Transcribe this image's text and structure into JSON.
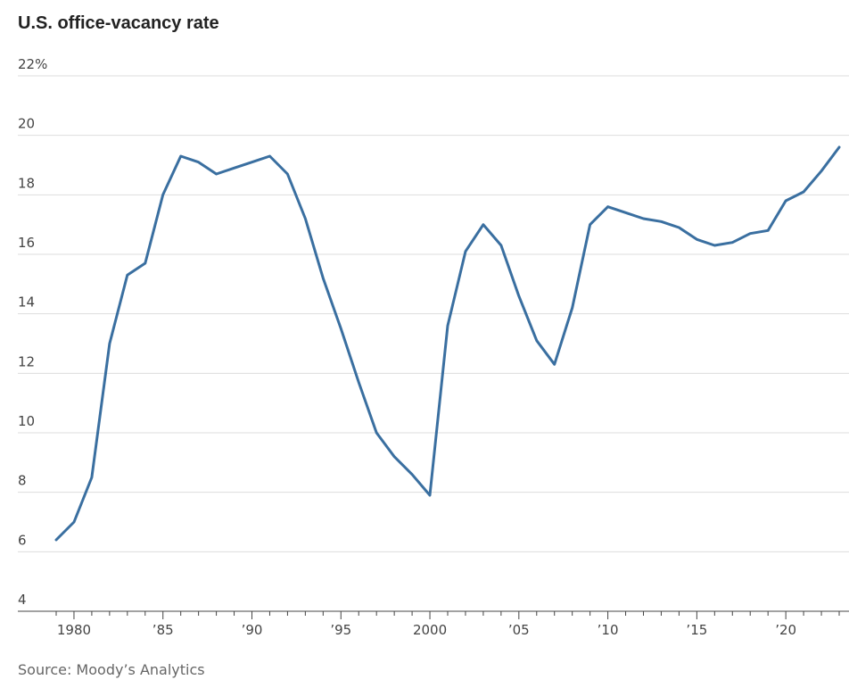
{
  "chart_data": {
    "type": "line",
    "title": "U.S. office-vacancy rate",
    "source": "Source: Moody’s Analytics",
    "y_unit_suffix": "%",
    "ylim": [
      4,
      22
    ],
    "xlim": [
      1978.1,
      2023.3
    ],
    "y_ticks": [
      {
        "value": 22,
        "label": "22%"
      },
      {
        "value": 20,
        "label": "20"
      },
      {
        "value": 18,
        "label": "18"
      },
      {
        "value": 16,
        "label": "16"
      },
      {
        "value": 14,
        "label": "14"
      },
      {
        "value": 12,
        "label": "12"
      },
      {
        "value": 10,
        "label": "10"
      },
      {
        "value": 8,
        "label": "8"
      },
      {
        "value": 6,
        "label": "6"
      },
      {
        "value": 4,
        "label": "4"
      }
    ],
    "x_ticks": [
      {
        "value": 1980,
        "label": "1980"
      },
      {
        "value": 1985,
        "label": "’85"
      },
      {
        "value": 1990,
        "label": "’90"
      },
      {
        "value": 1995,
        "label": "’95"
      },
      {
        "value": 2000,
        "label": "2000"
      },
      {
        "value": 2005,
        "label": "’05"
      },
      {
        "value": 2010,
        "label": "’10"
      },
      {
        "value": 2015,
        "label": "’15"
      },
      {
        "value": 2020,
        "label": "’20"
      }
    ],
    "minor_x_ticks": [
      1979,
      1980,
      1981,
      1982,
      1983,
      1984,
      1985,
      1986,
      1987,
      1988,
      1989,
      1990,
      1991,
      1992,
      1993,
      1994,
      1995,
      1996,
      1997,
      1998,
      1999,
      2000,
      2001,
      2002,
      2003,
      2004,
      2005,
      2006,
      2007,
      2008,
      2009,
      2010,
      2011,
      2012,
      2013,
      2014,
      2015,
      2016,
      2017,
      2018,
      2019,
      2020,
      2021,
      2022,
      2023
    ],
    "grid": true,
    "series": [
      {
        "color": "#3a6fa0",
        "x": [
          1979,
          1980,
          1981,
          1982,
          1983,
          1984,
          1985,
          1986,
          1987,
          1988,
          1989,
          1990,
          1991,
          1992,
          1993,
          1994,
          1995,
          1996,
          1997,
          1998,
          1999,
          2000,
          2001,
          2002,
          2003,
          2004,
          2005,
          2006,
          2007,
          2008,
          2009,
          2010,
          2011,
          2012,
          2013,
          2014,
          2015,
          2016,
          2017,
          2018,
          2019,
          2020,
          2021,
          2022,
          2023
        ],
        "values": [
          6.4,
          7.0,
          8.5,
          13.0,
          15.3,
          15.7,
          18.0,
          19.3,
          19.1,
          18.7,
          18.9,
          19.1,
          19.3,
          18.7,
          17.2,
          15.2,
          13.5,
          11.7,
          10.0,
          9.2,
          8.6,
          7.9,
          13.6,
          16.1,
          17.0,
          16.3,
          14.6,
          13.1,
          12.3,
          14.2,
          17.0,
          17.6,
          17.4,
          17.2,
          17.1,
          16.9,
          16.5,
          16.3,
          16.4,
          16.7,
          16.8,
          17.8,
          18.1,
          18.8,
          19.6
        ]
      }
    ]
  }
}
